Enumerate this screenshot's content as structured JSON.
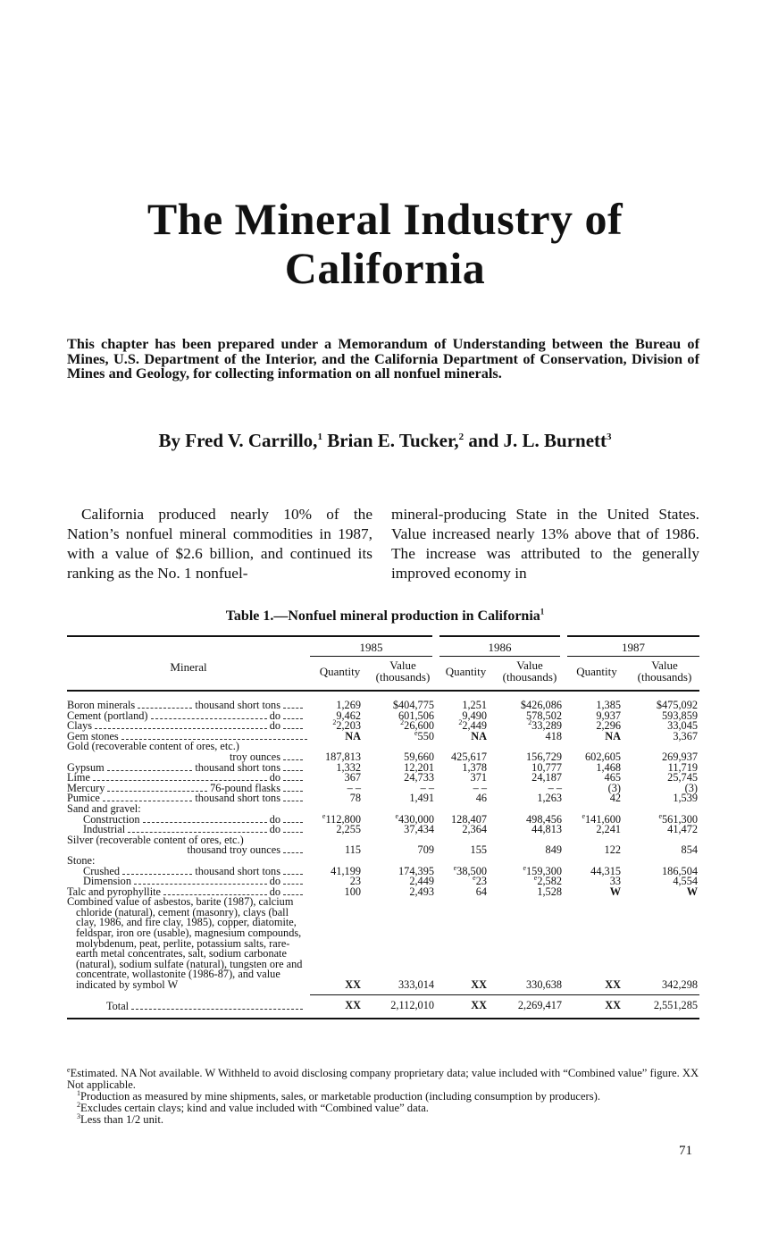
{
  "title": {
    "line1": "The Mineral Industry of",
    "line2": "California"
  },
  "intro": "This chapter has been prepared under a Memorandum of Understanding between the Bureau of Mines, U.S. Department of the Interior, and the California Department of Conservation, Division of Mines and Geology, for collecting information on all nonfuel minerals.",
  "byline": {
    "prefix": "By ",
    "a1": "Fred V. Carrillo,",
    "n1": "1",
    "a2": " Brian E. Tucker,",
    "n2": "2",
    "a3": " and J. L. Burnett",
    "n3": "3"
  },
  "body": {
    "left": "California produced nearly 10% of the Nation’s nonfuel mineral commodities in 1987, with a value of $2.6 billion, and continued its ranking as the No. 1 nonfuel-",
    "right": "mineral-producing State in the United States. Value increased nearly 13% above that of 1986. The increase was attributed to the generally improved economy in"
  },
  "table": {
    "title": "Table 1.—Nonfuel mineral production in California",
    "title_note": "1",
    "mineral_header": "Mineral",
    "years": [
      "1985",
      "1986",
      "1987"
    ],
    "quantity_header": "Quantity",
    "value_header": "Value",
    "value_sub": "(thousands)",
    "rows": [
      {
        "label": "Boron minerals",
        "unit": "thousand short tons",
        "cells": [
          [
            "",
            "1,269"
          ],
          [
            "",
            "$404,775"
          ],
          [
            "",
            "1,251"
          ],
          [
            "",
            "$426,086"
          ],
          [
            "",
            "1,385"
          ],
          [
            "",
            "$475,092"
          ]
        ]
      },
      {
        "label": "Cement (portland)",
        "unit": "do",
        "cells": [
          [
            "",
            "9,462"
          ],
          [
            "",
            "601,506"
          ],
          [
            "",
            "9,490"
          ],
          [
            "",
            "578,502"
          ],
          [
            "",
            "9,937"
          ],
          [
            "",
            "593,859"
          ]
        ]
      },
      {
        "label": "Clays",
        "unit": "do",
        "cells": [
          [
            "2",
            "2,203"
          ],
          [
            "2",
            "26,600"
          ],
          [
            "2",
            "2,449"
          ],
          [
            "2",
            "33,289"
          ],
          [
            "",
            "2,296"
          ],
          [
            "",
            "33,045"
          ]
        ]
      },
      {
        "label": "Gem stones",
        "unit": "",
        "cells": [
          [
            "",
            "NA"
          ],
          [
            "e",
            "550"
          ],
          [
            "",
            "NA"
          ],
          [
            "",
            "418"
          ],
          [
            "",
            "NA"
          ],
          [
            "",
            "3,367"
          ]
        ]
      },
      {
        "label": "Gold (recoverable content of ores, etc.)",
        "heading": true
      },
      {
        "label": "",
        "unit": "troy ounces",
        "right": true,
        "cells": [
          [
            "",
            "187,813"
          ],
          [
            "",
            "59,660"
          ],
          [
            "",
            "425,617"
          ],
          [
            "",
            "156,729"
          ],
          [
            "",
            "602,605"
          ],
          [
            "",
            "269,937"
          ]
        ]
      },
      {
        "label": "Gypsum",
        "unit": "thousand short tons",
        "cells": [
          [
            "",
            "1,332"
          ],
          [
            "",
            "12,201"
          ],
          [
            "",
            "1,378"
          ],
          [
            "",
            "10,777"
          ],
          [
            "",
            "1,468"
          ],
          [
            "",
            "11,719"
          ]
        ]
      },
      {
        "label": "Lime",
        "unit": "do",
        "cells": [
          [
            "",
            "367"
          ],
          [
            "",
            "24,733"
          ],
          [
            "",
            "371"
          ],
          [
            "",
            "24,187"
          ],
          [
            "",
            "465"
          ],
          [
            "",
            "25,745"
          ]
        ]
      },
      {
        "label": "Mercury",
        "unit": "76-pound flasks",
        "cells": [
          [
            "",
            "– –"
          ],
          [
            "",
            "– –"
          ],
          [
            "",
            "– –"
          ],
          [
            "",
            "– –"
          ],
          [
            "",
            "(3)"
          ],
          [
            "",
            "(3)"
          ]
        ]
      },
      {
        "label": "Pumice",
        "unit": "thousand short tons",
        "cells": [
          [
            "",
            "78"
          ],
          [
            "",
            "1,491"
          ],
          [
            "",
            "46"
          ],
          [
            "",
            "1,263"
          ],
          [
            "",
            "42"
          ],
          [
            "",
            "1,539"
          ]
        ]
      },
      {
        "label": "Sand and gravel:",
        "heading": true
      },
      {
        "label": "Construction",
        "unit": "do",
        "indent": true,
        "cells": [
          [
            "e",
            "112,800"
          ],
          [
            "e",
            "430,000"
          ],
          [
            "",
            "128,407"
          ],
          [
            "",
            "498,456"
          ],
          [
            "e",
            "141,600"
          ],
          [
            "e",
            "561,300"
          ]
        ]
      },
      {
        "label": "Industrial",
        "unit": "do",
        "indent": true,
        "cells": [
          [
            "",
            "2,255"
          ],
          [
            "",
            "37,434"
          ],
          [
            "",
            "2,364"
          ],
          [
            "",
            "44,813"
          ],
          [
            "",
            "2,241"
          ],
          [
            "",
            "41,472"
          ]
        ]
      },
      {
        "label": "Silver (recoverable content of ores, etc.)",
        "heading": true
      },
      {
        "label": "",
        "unit": "thousand troy ounces",
        "right": true,
        "cells": [
          [
            "",
            "115"
          ],
          [
            "",
            "709"
          ],
          [
            "",
            "155"
          ],
          [
            "",
            "849"
          ],
          [
            "",
            "122"
          ],
          [
            "",
            "854"
          ]
        ]
      },
      {
        "label": "Stone:",
        "heading": true
      },
      {
        "label": "Crushed",
        "unit": "thousand short tons",
        "indent": true,
        "cells": [
          [
            "",
            "41,199"
          ],
          [
            "",
            "174,395"
          ],
          [
            "e",
            "38,500"
          ],
          [
            "e",
            "159,300"
          ],
          [
            "",
            "44,315"
          ],
          [
            "",
            "186,504"
          ]
        ]
      },
      {
        "label": "Dimension",
        "unit": "do",
        "indent": true,
        "cells": [
          [
            "",
            "23"
          ],
          [
            "",
            "2,449"
          ],
          [
            "e",
            "23"
          ],
          [
            "e",
            "2,582"
          ],
          [
            "",
            "33"
          ],
          [
            "",
            "4,554"
          ]
        ]
      },
      {
        "label": "Talc and pyrophyllite",
        "unit": "do",
        "cells": [
          [
            "",
            "100"
          ],
          [
            "",
            "2,493"
          ],
          [
            "",
            "64"
          ],
          [
            "",
            "1,528"
          ],
          [
            "",
            "W"
          ],
          [
            "",
            "W"
          ]
        ]
      },
      {
        "label": "Combined value of asbestos, barite (1987), calcium chloride (natural), cement (masonry), clays (ball clay, 1986, and fire clay, 1985), copper, diatomite, feldspar, iron ore (usable), magnesium compounds, molybdenum, peat, perlite, potassium salts, rare-earth metal concentrates, salt, sodium carbonate (natural), sodium sulfate (natural), tungsten ore and concentrate, wollastonite (1986-87), and value indicated by symbol W",
        "combined": true,
        "cells": [
          [
            "",
            "XX"
          ],
          [
            "",
            "333,014"
          ],
          [
            "",
            "XX"
          ],
          [
            "",
            "330,638"
          ],
          [
            "",
            "XX"
          ],
          [
            "",
            "342,298"
          ]
        ]
      }
    ],
    "total": {
      "label": "Total",
      "cells": [
        "XX",
        "2,112,010",
        "XX",
        "2,269,417",
        "XX",
        "2,551,285"
      ]
    }
  },
  "footnotes": {
    "e_note": "e",
    "legend": "Estimated.   NA Not available.   W Withheld to avoid disclosing company proprietary data; value included with “Combined value” figure.   XX Not applicable.",
    "f1": "Production as measured by mine shipments, sales, or marketable production (including consumption by producers).",
    "f2": "Excludes certain clays; kind and value included with “Combined value” data.",
    "f3": "Less than 1/2 unit."
  },
  "page_number": "71"
}
